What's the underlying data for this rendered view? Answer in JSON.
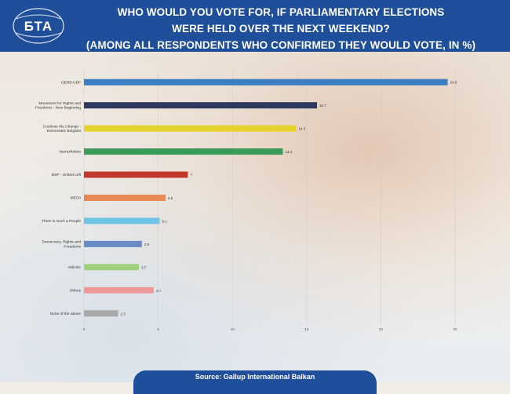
{
  "header": {
    "logo_text": "БТА",
    "title_lines": [
      "WHO WOULD YOU VOTE FOR, IF PARLIAMENTARY ELECTIONS",
      "WERE HELD OVER THE NEXT WEEKEND?",
      "(AMONG ALL RESPONDENTS WHO CONFIRMED THEY WOULD VOTE, IN %)"
    ]
  },
  "footer": {
    "source": "Source: Gallup International Balkan"
  },
  "colors": {
    "header_bg": "#1f4f9a"
  },
  "chart_data": {
    "type": "bar",
    "orientation": "horizontal",
    "title": "",
    "xlabel": "",
    "ylabel": "",
    "xlim": [
      0,
      25
    ],
    "xticks": [
      0,
      5,
      10,
      15,
      20,
      25
    ],
    "grid": true,
    "categories": [
      [
        "GERB-UDF"
      ],
      [
        "Movement for Rights and",
        "Freedoms - New Beginning"
      ],
      [
        "Continue the Change -",
        "Democratic Bulgaria"
      ],
      [
        "Vazrazhdane"
      ],
      [
        "BSP - United Left"
      ],
      [
        "MECh"
      ],
      [
        "There Is Such a People"
      ],
      [
        "Democracy, Rights and",
        "Freedoms"
      ],
      [
        "Velichie"
      ],
      [
        "Others"
      ],
      [
        "None of the above"
      ]
    ],
    "values": [
      24.5,
      15.7,
      14.3,
      13.4,
      7,
      5.5,
      5.1,
      3.9,
      3.7,
      4.7,
      2.3
    ],
    "value_labels": [
      "24.5",
      "15.7",
      "14.3",
      "13.4",
      "7",
      "5.5",
      "5.1",
      "3.9",
      "3.7",
      "4.7",
      "2.3"
    ],
    "bar_colors": [
      "#3a7fc2",
      "#2d3a5e",
      "#e5d22b",
      "#3a9a57",
      "#c0392b",
      "#e58a54",
      "#6fc3e6",
      "#6a8bc6",
      "#9fd07c",
      "#ef9a9a",
      "#a9a9a9"
    ]
  }
}
